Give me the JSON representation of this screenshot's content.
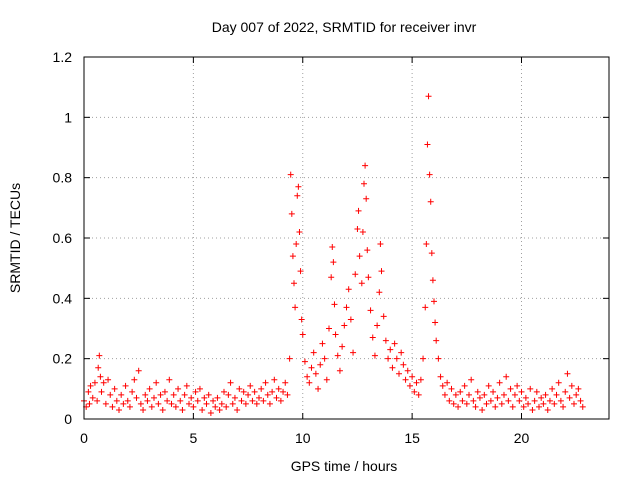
{
  "chart_data": {
    "type": "scatter",
    "title": "Day 007 of 2022, SRMTID for receiver invr",
    "xlabel": "GPS time / hours",
    "ylabel": "SRMTID / TECUs",
    "xlim": [
      0,
      24
    ],
    "ylim": [
      0,
      1.2
    ],
    "x_ticks": [
      0,
      5,
      10,
      15,
      20
    ],
    "x_tick_labels": [
      "0",
      "5",
      "10",
      "15",
      "20"
    ],
    "y_ticks": [
      0,
      0.2,
      0.4,
      0.6,
      0.8,
      1.0,
      1.2
    ],
    "y_tick_labels": [
      "0",
      "0.2",
      "0.4",
      "0.6",
      "0.8",
      "1",
      "1.2"
    ],
    "grid": true,
    "marker": "plus",
    "series": [
      {
        "name": "SRMTID",
        "color": "#ff0000",
        "points": [
          [
            0.0,
            0.06
          ],
          [
            0.1,
            0.04
          ],
          [
            0.2,
            0.09
          ],
          [
            0.25,
            0.05
          ],
          [
            0.3,
            0.11
          ],
          [
            0.4,
            0.07
          ],
          [
            0.5,
            0.12
          ],
          [
            0.6,
            0.06
          ],
          [
            0.65,
            0.17
          ],
          [
            0.7,
            0.21
          ],
          [
            0.75,
            0.14
          ],
          [
            0.8,
            0.09
          ],
          [
            0.9,
            0.12
          ],
          [
            1.0,
            0.05
          ],
          [
            1.1,
            0.13
          ],
          [
            1.2,
            0.08
          ],
          [
            1.3,
            0.04
          ],
          [
            1.4,
            0.1
          ],
          [
            1.5,
            0.06
          ],
          [
            1.6,
            0.03
          ],
          [
            1.7,
            0.08
          ],
          [
            1.8,
            0.05
          ],
          [
            1.9,
            0.11
          ],
          [
            2.0,
            0.06
          ],
          [
            2.1,
            0.04
          ],
          [
            2.2,
            0.09
          ],
          [
            2.3,
            0.13
          ],
          [
            2.4,
            0.07
          ],
          [
            2.5,
            0.16
          ],
          [
            2.6,
            0.05
          ],
          [
            2.7,
            0.03
          ],
          [
            2.8,
            0.08
          ],
          [
            2.9,
            0.06
          ],
          [
            3.0,
            0.1
          ],
          [
            3.1,
            0.04
          ],
          [
            3.2,
            0.07
          ],
          [
            3.3,
            0.12
          ],
          [
            3.4,
            0.05
          ],
          [
            3.5,
            0.08
          ],
          [
            3.6,
            0.03
          ],
          [
            3.7,
            0.09
          ],
          [
            3.8,
            0.06
          ],
          [
            3.9,
            0.13
          ],
          [
            4.0,
            0.05
          ],
          [
            4.1,
            0.08
          ],
          [
            4.2,
            0.04
          ],
          [
            4.3,
            0.1
          ],
          [
            4.4,
            0.06
          ],
          [
            4.5,
            0.03
          ],
          [
            4.6,
            0.08
          ],
          [
            4.7,
            0.11
          ],
          [
            4.8,
            0.05
          ],
          [
            4.9,
            0.07
          ],
          [
            5.0,
            0.04
          ],
          [
            5.1,
            0.09
          ],
          [
            5.2,
            0.06
          ],
          [
            5.3,
            0.1
          ],
          [
            5.4,
            0.03
          ],
          [
            5.5,
            0.07
          ],
          [
            5.6,
            0.05
          ],
          [
            5.7,
            0.08
          ],
          [
            5.8,
            0.02
          ],
          [
            5.9,
            0.06
          ],
          [
            6.0,
            0.04
          ],
          [
            6.1,
            0.07
          ],
          [
            6.2,
            0.03
          ],
          [
            6.3,
            0.05
          ],
          [
            6.4,
            0.09
          ],
          [
            6.5,
            0.04
          ],
          [
            6.6,
            0.08
          ],
          [
            6.7,
            0.12
          ],
          [
            6.8,
            0.05
          ],
          [
            6.9,
            0.07
          ],
          [
            7.0,
            0.03
          ],
          [
            7.1,
            0.1
          ],
          [
            7.2,
            0.06
          ],
          [
            7.3,
            0.09
          ],
          [
            7.4,
            0.05
          ],
          [
            7.5,
            0.08
          ],
          [
            7.6,
            0.11
          ],
          [
            7.7,
            0.06
          ],
          [
            7.8,
            0.09
          ],
          [
            7.9,
            0.05
          ],
          [
            8.0,
            0.07
          ],
          [
            8.1,
            0.1
          ],
          [
            8.2,
            0.06
          ],
          [
            8.3,
            0.12
          ],
          [
            8.4,
            0.08
          ],
          [
            8.5,
            0.05
          ],
          [
            8.6,
            0.09
          ],
          [
            8.7,
            0.13
          ],
          [
            8.8,
            0.07
          ],
          [
            8.9,
            0.1
          ],
          [
            9.0,
            0.06
          ],
          [
            9.1,
            0.09
          ],
          [
            9.2,
            0.12
          ],
          [
            9.3,
            0.08
          ],
          [
            9.4,
            0.2
          ],
          [
            9.45,
            0.81
          ],
          [
            9.5,
            0.68
          ],
          [
            9.55,
            0.54
          ],
          [
            9.6,
            0.45
          ],
          [
            9.65,
            0.37
          ],
          [
            9.7,
            0.58
          ],
          [
            9.75,
            0.74
          ],
          [
            9.8,
            0.77
          ],
          [
            9.85,
            0.62
          ],
          [
            9.9,
            0.49
          ],
          [
            9.95,
            0.33
          ],
          [
            10.0,
            0.28
          ],
          [
            10.1,
            0.19
          ],
          [
            10.2,
            0.14
          ],
          [
            10.3,
            0.12
          ],
          [
            10.4,
            0.17
          ],
          [
            10.5,
            0.22
          ],
          [
            10.6,
            0.15
          ],
          [
            10.7,
            0.1
          ],
          [
            10.8,
            0.18
          ],
          [
            10.9,
            0.25
          ],
          [
            11.0,
            0.2
          ],
          [
            11.1,
            0.13
          ],
          [
            11.2,
            0.3
          ],
          [
            11.3,
            0.47
          ],
          [
            11.35,
            0.57
          ],
          [
            11.4,
            0.52
          ],
          [
            11.45,
            0.38
          ],
          [
            11.5,
            0.28
          ],
          [
            11.6,
            0.21
          ],
          [
            11.7,
            0.16
          ],
          [
            11.8,
            0.24
          ],
          [
            11.9,
            0.31
          ],
          [
            12.0,
            0.37
          ],
          [
            12.1,
            0.43
          ],
          [
            12.2,
            0.33
          ],
          [
            12.3,
            0.22
          ],
          [
            12.4,
            0.48
          ],
          [
            12.5,
            0.63
          ],
          [
            12.55,
            0.69
          ],
          [
            12.6,
            0.54
          ],
          [
            12.7,
            0.45
          ],
          [
            12.75,
            0.62
          ],
          [
            12.8,
            0.78
          ],
          [
            12.85,
            0.84
          ],
          [
            12.9,
            0.73
          ],
          [
            12.95,
            0.56
          ],
          [
            13.0,
            0.47
          ],
          [
            13.1,
            0.36
          ],
          [
            13.2,
            0.27
          ],
          [
            13.3,
            0.21
          ],
          [
            13.4,
            0.31
          ],
          [
            13.5,
            0.42
          ],
          [
            13.55,
            0.58
          ],
          [
            13.6,
            0.49
          ],
          [
            13.7,
            0.34
          ],
          [
            13.8,
            0.26
          ],
          [
            13.9,
            0.2
          ],
          [
            14.0,
            0.23
          ],
          [
            14.1,
            0.17
          ],
          [
            14.2,
            0.25
          ],
          [
            14.3,
            0.2
          ],
          [
            14.4,
            0.15
          ],
          [
            14.5,
            0.22
          ],
          [
            14.6,
            0.18
          ],
          [
            14.7,
            0.13
          ],
          [
            14.8,
            0.16
          ],
          [
            14.9,
            0.11
          ],
          [
            15.0,
            0.14
          ],
          [
            15.1,
            0.09
          ],
          [
            15.2,
            0.12
          ],
          [
            15.3,
            0.08
          ],
          [
            15.4,
            0.13
          ],
          [
            15.5,
            0.2
          ],
          [
            15.6,
            0.37
          ],
          [
            15.65,
            0.58
          ],
          [
            15.7,
            0.91
          ],
          [
            15.75,
            1.07
          ],
          [
            15.8,
            0.81
          ],
          [
            15.85,
            0.72
          ],
          [
            15.9,
            0.55
          ],
          [
            15.95,
            0.46
          ],
          [
            16.0,
            0.39
          ],
          [
            16.05,
            0.32
          ],
          [
            16.1,
            0.26
          ],
          [
            16.2,
            0.2
          ],
          [
            16.3,
            0.14
          ],
          [
            16.4,
            0.11
          ],
          [
            16.5,
            0.08
          ],
          [
            16.6,
            0.12
          ],
          [
            16.7,
            0.06
          ],
          [
            16.8,
            0.1
          ],
          [
            16.9,
            0.05
          ],
          [
            17.0,
            0.08
          ],
          [
            17.1,
            0.04
          ],
          [
            17.2,
            0.09
          ],
          [
            17.3,
            0.06
          ],
          [
            17.4,
            0.11
          ],
          [
            17.5,
            0.05
          ],
          [
            17.6,
            0.08
          ],
          [
            17.7,
            0.13
          ],
          [
            17.8,
            0.06
          ],
          [
            17.9,
            0.04
          ],
          [
            18.0,
            0.09
          ],
          [
            18.1,
            0.07
          ],
          [
            18.2,
            0.03
          ],
          [
            18.3,
            0.08
          ],
          [
            18.4,
            0.05
          ],
          [
            18.5,
            0.11
          ],
          [
            18.6,
            0.06
          ],
          [
            18.7,
            0.09
          ],
          [
            18.8,
            0.04
          ],
          [
            18.9,
            0.07
          ],
          [
            19.0,
            0.12
          ],
          [
            19.1,
            0.05
          ],
          [
            19.2,
            0.08
          ],
          [
            19.3,
            0.14
          ],
          [
            19.4,
            0.06
          ],
          [
            19.5,
            0.1
          ],
          [
            19.6,
            0.04
          ],
          [
            19.7,
            0.08
          ],
          [
            19.8,
            0.11
          ],
          [
            19.9,
            0.06
          ],
          [
            20.0,
            0.09
          ],
          [
            20.1,
            0.04
          ],
          [
            20.2,
            0.07
          ],
          [
            20.3,
            0.05
          ],
          [
            20.4,
            0.1
          ],
          [
            20.5,
            0.03
          ],
          [
            20.6,
            0.06
          ],
          [
            20.7,
            0.09
          ],
          [
            20.8,
            0.04
          ],
          [
            20.9,
            0.07
          ],
          [
            21.0,
            0.05
          ],
          [
            21.1,
            0.08
          ],
          [
            21.2,
            0.03
          ],
          [
            21.3,
            0.06
          ],
          [
            21.4,
            0.1
          ],
          [
            21.5,
            0.05
          ],
          [
            21.6,
            0.08
          ],
          [
            21.7,
            0.12
          ],
          [
            21.8,
            0.06
          ],
          [
            21.9,
            0.04
          ],
          [
            22.0,
            0.09
          ],
          [
            22.1,
            0.15
          ],
          [
            22.2,
            0.07
          ],
          [
            22.3,
            0.11
          ],
          [
            22.4,
            0.05
          ],
          [
            22.5,
            0.08
          ],
          [
            22.6,
            0.1
          ],
          [
            22.7,
            0.06
          ],
          [
            22.8,
            0.04
          ]
        ]
      }
    ]
  }
}
